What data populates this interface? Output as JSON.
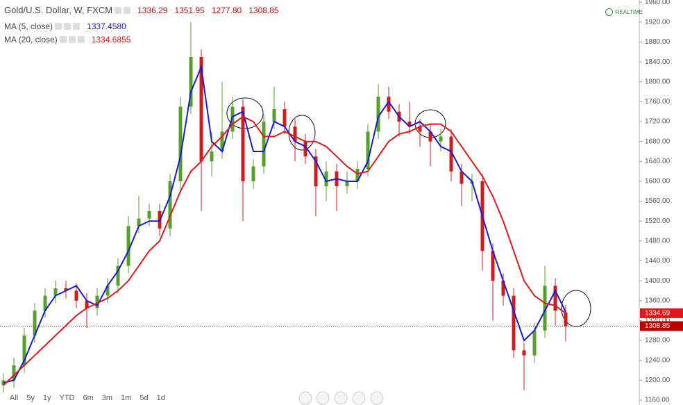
{
  "chart_data": {
    "type": "candlestick",
    "title": "Gold/U.S. Dollar, W, FXCM",
    "ohlc_legend": [
      1336.29,
      1351.95,
      {
        "value": 1277.8,
        "label": "1277.80"
      },
      1308.85
    ],
    "open": [
      1190,
      1200,
      1230,
      1290,
      1340,
      1370,
      1385,
      1380,
      1360,
      1345,
      1370,
      1390,
      1430,
      1510,
      1525,
      1540,
      1505,
      1600,
      1750,
      1850,
      1640,
      1660,
      1700,
      1750,
      1600,
      1630,
      1720,
      1745,
      1710,
      1680,
      1650,
      1590,
      1620,
      1590,
      1600,
      1625,
      1700,
      1770,
      1740,
      1720,
      1710,
      1700,
      1680,
      1690,
      1620,
      1595,
      1600,
      1460,
      1400,
      1370,
      1260,
      1250,
      1300,
      1390,
      1336.29
    ],
    "high": [
      1215,
      1245,
      1305,
      1355,
      1385,
      1400,
      1400,
      1395,
      1375,
      1385,
      1405,
      1445,
      1530,
      1570,
      1555,
      1555,
      1615,
      1770,
      1920,
      1865,
      1700,
      1800,
      1770,
      1765,
      1645,
      1735,
      1790,
      1760,
      1725,
      1695,
      1665,
      1640,
      1635,
      1620,
      1640,
      1715,
      1795,
      1790,
      1755,
      1760,
      1725,
      1715,
      1705,
      1705,
      1635,
      1615,
      1615,
      1475,
      1415,
      1385,
      1275,
      1315,
      1430,
      1405,
      1351.95
    ],
    "low": [
      1175,
      1185,
      1215,
      1275,
      1325,
      1355,
      1365,
      1345,
      1305,
      1330,
      1355,
      1375,
      1415,
      1495,
      1510,
      1490,
      1490,
      1585,
      1735,
      1540,
      1610,
      1645,
      1685,
      1520,
      1585,
      1615,
      1705,
      1695,
      1640,
      1635,
      1530,
      1560,
      1540,
      1575,
      1585,
      1610,
      1685,
      1725,
      1690,
      1695,
      1670,
      1630,
      1660,
      1600,
      1550,
      1560,
      1420,
      1320,
      1350,
      1245,
      1180,
      1235,
      1285,
      1310,
      1277.8
    ],
    "close": [
      1200,
      1230,
      1290,
      1340,
      1370,
      1385,
      1380,
      1360,
      1345,
      1370,
      1390,
      1430,
      1510,
      1525,
      1540,
      1505,
      1600,
      1750,
      1850,
      1640,
      1660,
      1700,
      1750,
      1600,
      1630,
      1720,
      1745,
      1710,
      1680,
      1650,
      1590,
      1620,
      1590,
      1600,
      1625,
      1700,
      1770,
      1740,
      1720,
      1710,
      1700,
      1680,
      1690,
      1620,
      1595,
      1600,
      1460,
      1400,
      1370,
      1260,
      1250,
      1300,
      1390,
      1340,
      1308.85
    ],
    "up_color": "#53a02b",
    "down_color": "#d01c1c",
    "indicators": [
      {
        "name": "MA (5, close)",
        "color": "#1a1ad6",
        "last": {
          "value": 1337.458,
          "label": "1337.4580"
        },
        "values": [
          1195,
          1200,
          1240,
          1290,
          1340,
          1370,
          1380,
          1390,
          1360,
          1350,
          1390,
          1420,
          1460,
          1510,
          1520,
          1520,
          1570,
          1650,
          1780,
          1830,
          1680,
          1660,
          1730,
          1740,
          1660,
          1660,
          1720,
          1710,
          1680,
          1670,
          1640,
          1600,
          1605,
          1600,
          1600,
          1640,
          1730,
          1760,
          1730,
          1710,
          1720,
          1700,
          1670,
          1660,
          1620,
          1600,
          1530,
          1460,
          1400,
          1340,
          1280,
          1300,
          1340,
          1380,
          1337.458
        ]
      },
      {
        "name": "MA (20, close)",
        "color": "#e01818",
        "last": 1334.6855,
        "values": [
          1190,
          1210,
          1230,
          1250,
          1270,
          1290,
          1310,
          1330,
          1345,
          1355,
          1365,
          1380,
          1400,
          1430,
          1460,
          1480,
          1530,
          1580,
          1620,
          1640,
          1670,
          1690,
          1715,
          1730,
          1720,
          1690,
          1690,
          1700,
          1690,
          1680,
          1680,
          1670,
          1650,
          1630,
          1615,
          1620,
          1650,
          1680,
          1695,
          1700,
          1710,
          1715,
          1715,
          1700,
          1670,
          1640,
          1610,
          1570,
          1520,
          1460,
          1400,
          1370,
          1355,
          1350,
          1334.6855
        ]
      }
    ],
    "price_tags": [
      {
        "value": 1334.69,
        "color": "#e01818"
      },
      {
        "value": 1308.85,
        "color": "#c00000"
      }
    ],
    "ylim": [
      1150.2,
      1964.5
    ],
    "yticks": [
      {
        "value": 1160,
        "label": "1160.00"
      },
      {
        "value": 1200,
        "label": "1200.00"
      },
      {
        "value": 1240,
        "label": "1240.00"
      },
      {
        "value": 1280,
        "label": "1280.00"
      },
      {
        "value": 1320,
        "label": "1320.00"
      },
      {
        "value": 1360,
        "label": "1360.00"
      },
      {
        "value": 1400,
        "label": "1400.00"
      },
      {
        "value": 1440,
        "label": "1440.00"
      },
      {
        "value": 1480,
        "label": "1480.00"
      },
      {
        "value": 1520,
        "label": "1520.00"
      },
      {
        "value": 1560,
        "label": "1560.00"
      },
      {
        "value": 1600,
        "label": "1600.00"
      },
      {
        "value": 1640,
        "label": "1640.00"
      },
      {
        "value": 1680,
        "label": "1680.00"
      },
      {
        "value": 1720,
        "label": "1720.00"
      },
      {
        "value": 1760,
        "label": "1760.00"
      },
      {
        "value": 1800,
        "label": "1800.00"
      },
      {
        "value": 1840,
        "label": "1840.00"
      },
      {
        "value": 1880,
        "label": "1880.00"
      },
      {
        "value": 1920,
        "label": "1920.00"
      },
      {
        "value": 1960,
        "label": "1960.00"
      }
    ],
    "grid": false,
    "realtime": "REALTIME",
    "range_buttons": [
      "All",
      "5y",
      "1y",
      "YTD",
      "6m",
      "3m",
      "1m",
      "5d",
      "1d"
    ]
  }
}
